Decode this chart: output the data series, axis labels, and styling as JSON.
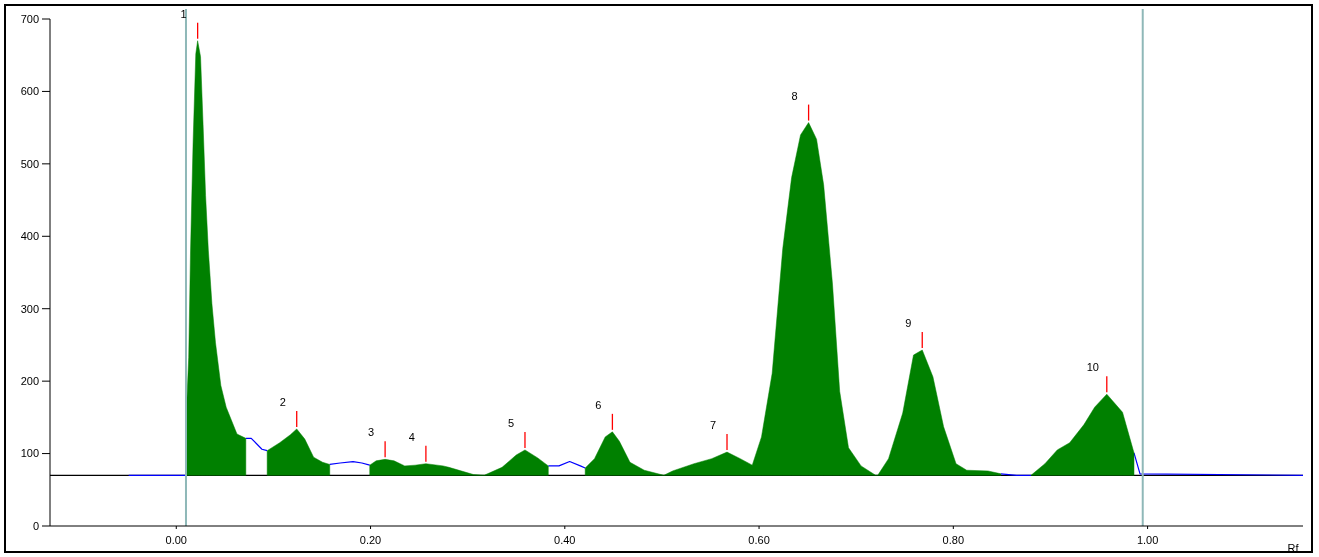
{
  "chart_data": {
    "type": "area",
    "xlabel": "Rf",
    "x": [
      -0.049,
      0.0103,
      0.0105,
      0.0128,
      0.0147,
      0.0173,
      0.0201,
      0.022,
      0.025,
      0.0276,
      0.0302,
      0.033,
      0.0367,
      0.0404,
      0.0459,
      0.0514,
      0.0625,
      0.0716,
      0.0772,
      0.0882,
      0.0936,
      0.1065,
      0.1175,
      0.124,
      0.1323,
      0.1414,
      0.1506,
      0.158,
      0.1687,
      0.182,
      0.1911,
      0.1992,
      0.2058,
      0.215,
      0.2242,
      0.2352,
      0.2459,
      0.257,
      0.2747,
      0.2807,
      0.306,
      0.317,
      0.3354,
      0.35,
      0.359,
      0.3721,
      0.383,
      0.394,
      0.405,
      0.416,
      0.421,
      0.4306,
      0.4416,
      0.449,
      0.4562,
      0.4671,
      0.4818,
      0.502,
      0.511,
      0.533,
      0.5513,
      0.567,
      0.5806,
      0.593,
      0.6025,
      0.6135,
      0.6244,
      0.6335,
      0.6427,
      0.651,
      0.6592,
      0.6665,
      0.6756,
      0.683,
      0.6921,
      0.705,
      0.72,
      0.7222,
      0.7333,
      0.7479,
      0.759,
      0.768,
      0.779,
      0.79,
      0.8028,
      0.8138,
      0.8357,
      0.849,
      0.8651,
      0.88,
      0.8943,
      0.907,
      0.9198,
      0.9345,
      0.9455,
      0.958,
      0.9742,
      0.986,
      0.9922,
      1.16
    ],
    "series": [
      {
        "type": "line",
        "color": "#0000ff",
        "values": [
          70,
          70,
          null,
          null,
          null,
          null,
          null,
          null,
          null,
          null,
          null,
          null,
          null,
          null,
          null,
          null,
          null,
          121,
          121,
          106,
          104,
          null,
          null,
          null,
          null,
          null,
          null,
          85,
          87,
          89,
          87,
          84,
          null,
          null,
          null,
          null,
          null,
          null,
          null,
          null,
          null,
          null,
          null,
          null,
          null,
          null,
          83,
          83,
          89,
          83,
          80,
          null,
          null,
          null,
          null,
          null,
          null,
          null,
          null,
          null,
          null,
          null,
          null,
          null,
          null,
          null,
          null,
          null,
          null,
          null,
          null,
          null,
          null,
          null,
          null,
          null,
          null,
          null,
          null,
          null,
          null,
          null,
          null,
          null,
          null,
          null,
          null,
          72,
          70,
          70,
          null,
          null,
          null,
          null,
          null,
          null,
          null,
          101,
          72,
          70
        ]
      },
      {
        "color": "#008000",
        "values": [
          null,
          70,
          160,
          233,
          381,
          529,
          652,
          670,
          648,
          554,
          456,
          381,
          307,
          253,
          194,
          164,
          127,
          121,
          null,
          null,
          104,
          115,
          126,
          134,
          120,
          95,
          88,
          85,
          null,
          null,
          null,
          84,
          90,
          92,
          90,
          83,
          84,
          86,
          83,
          81,
          71,
          70,
          81,
          98,
          105,
          94,
          83,
          null,
          null,
          null,
          80,
          93,
          123,
          130,
          117,
          88,
          77,
          70,
          76,
          86,
          93,
          102,
          93,
          84,
          123,
          211,
          383,
          481,
          540,
          557,
          534,
          471,
          334,
          186,
          108,
          83,
          70,
          70,
          93,
          156,
          236,
          243,
          206,
          137,
          86,
          77,
          76,
          72,
          null,
          70,
          86,
          105,
          115,
          140,
          164,
          182,
          157,
          101,
          null,
          null
        ]
      }
    ],
    "xlim": [
      -0.13,
      1.16
    ],
    "ylim": [
      0,
      700
    ],
    "xticks": [
      {
        "value": 0,
        "label": "0.00"
      },
      {
        "value": 0.2,
        "label": "0.20"
      },
      {
        "value": 0.4,
        "label": "0.40"
      },
      {
        "value": 0.6,
        "label": "0.60"
      },
      {
        "value": 0.8,
        "label": "0.80"
      },
      {
        "value": 1,
        "label": "1.00"
      }
    ],
    "yticks": [
      0,
      100,
      200,
      300,
      400,
      500,
      600,
      700
    ],
    "ref_lines": [
      {
        "axis": "y",
        "value": 70,
        "color": "#000000"
      },
      {
        "axis": "x",
        "value": 0.01,
        "color": "#8fb8b8"
      },
      {
        "axis": "x",
        "value": 0.995,
        "color": "#8fb8b8"
      }
    ],
    "annotations": [
      {
        "text": "1",
        "x": 0.022,
        "y": 670
      },
      {
        "text": "2",
        "x": 0.124,
        "y": 134
      },
      {
        "text": "3",
        "x": 0.215,
        "y": 92
      },
      {
        "text": "4",
        "x": 0.257,
        "y": 86
      },
      {
        "text": "5",
        "x": 0.359,
        "y": 105
      },
      {
        "text": "6",
        "x": 0.449,
        "y": 130
      },
      {
        "text": "7",
        "x": 0.567,
        "y": 102
      },
      {
        "text": "8",
        "x": 0.651,
        "y": 557
      },
      {
        "text": "9",
        "x": 0.768,
        "y": 243
      },
      {
        "text": "10",
        "x": 0.958,
        "y": 182
      }
    ],
    "grid": false
  }
}
